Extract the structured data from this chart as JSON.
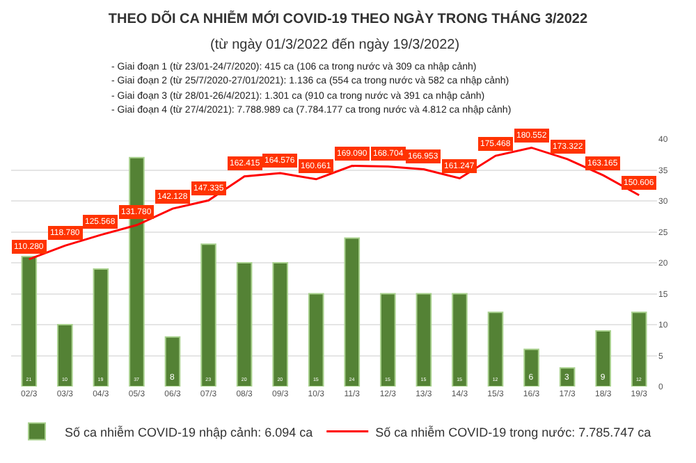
{
  "chart_data": {
    "type": "bar",
    "title": "THEO DÕI CA NHIỄM MỚI COVID-19 THEO NGÀY TRONG THÁNG 3/2022",
    "subtitle": "(từ ngày 01/3/2022 đến ngày 19/3/2022)",
    "annotations": [
      "- Giai đoạn 1 (từ 23/01-24/7/2020): 415 ca (106 ca trong nước và 309 ca nhập cảnh)",
      "- Giai đoạn 2 (từ 25/7/2020-27/01/2021): 1.136 ca (554 ca trong nước và 582 ca nhập cảnh)",
      "- Giai đoạn 3 (từ 28/01-26/4/2021): 1.301 ca (910 ca trong nước và 391 ca nhập cảnh)",
      "- Giai đoạn 4 (từ 27/4/2021): 7.788.989 ca (7.784.177 ca trong nước và 4.812 ca nhập cảnh)"
    ],
    "categories": [
      "02/3",
      "03/3",
      "04/3",
      "05/3",
      "06/3",
      "07/3",
      "08/3",
      "09/3",
      "10/3",
      "11/3",
      "12/3",
      "13/3",
      "14/3",
      "15/3",
      "16/3",
      "17/3",
      "18/3",
      "19/3"
    ],
    "series": [
      {
        "name": "Số ca nhiễm COVID-19 nhập cảnh: 6.094 ca",
        "color": "#548235",
        "data_labels": true,
        "values": [
          21,
          10,
          19,
          37,
          8,
          23,
          20,
          20,
          15,
          24,
          15,
          15,
          15,
          12,
          6,
          3,
          9,
          12
        ]
      },
      {
        "name": "Số ca nhiễm COVID-19 trong nước: 7.785.747 ca",
        "type": "line",
        "axis": "y2",
        "color": "#ff0000",
        "marker": "none",
        "values": [
          110280,
          118780,
          125568,
          131780,
          142128,
          147335,
          162415,
          164576,
          160661,
          169090,
          168704,
          166953,
          161247,
          175468,
          180552,
          173322,
          163165,
          150606
        ],
        "value_labels": [
          "110.280",
          "118.780",
          "125.568",
          "131.780",
          "142.128",
          "147.335",
          "162.415",
          "164.576",
          "160.661",
          "169.090",
          "168.704",
          "166.953",
          "161.247",
          "175.468",
          "180.552",
          "173.322",
          "163.165",
          "150.606"
        ]
      }
    ],
    "ylim": [
      0,
      40
    ],
    "yticks": [
      0,
      5,
      10,
      15,
      20,
      25,
      30,
      35,
      40
    ],
    "y2lim": [
      30000,
      186000
    ],
    "grid": "y",
    "legend": "bottom"
  }
}
